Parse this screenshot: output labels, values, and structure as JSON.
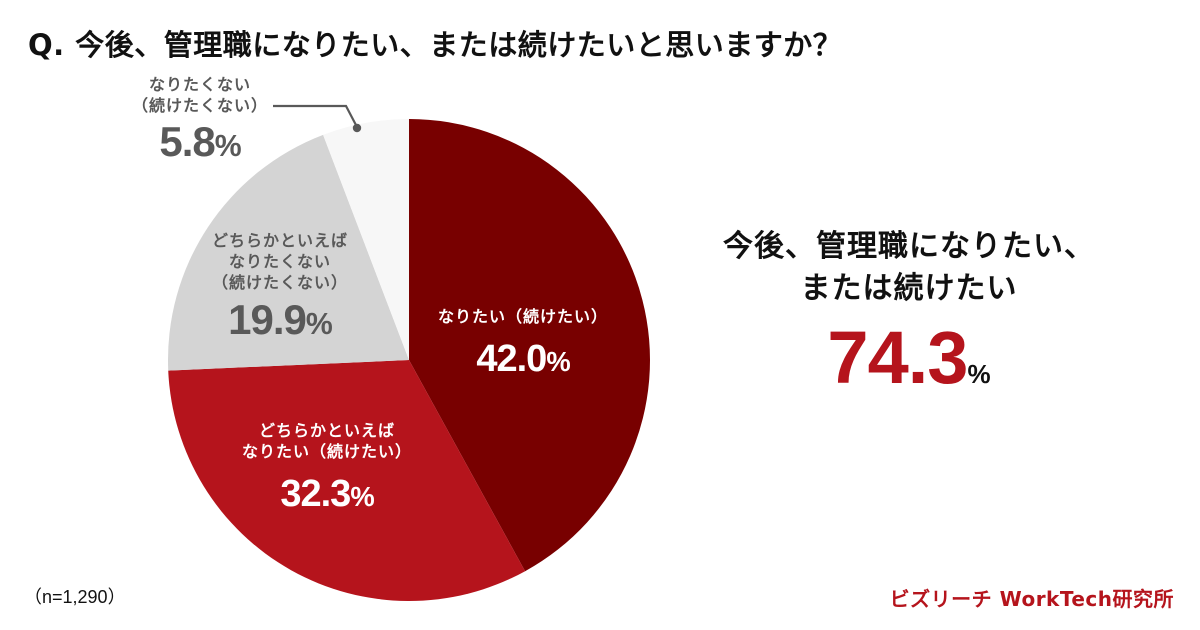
{
  "title": "Q. 今後、管理職になりたい、または続けたいと思いますか？",
  "chart_data": {
    "type": "pie",
    "title": "Q. 今後、管理職になりたい、または続けたいと思いますか？",
    "start_angle": "12 o'clock, clockwise",
    "categories": [
      "なりたい（続けたい）",
      "どちらかといえばなりたい（続けたい）",
      "どちらかといえばなりたくない（続けたくない）",
      "なりたくない（続けたくない）"
    ],
    "values": [
      42.0,
      32.3,
      19.9,
      5.8
    ],
    "colors": [
      "#780000",
      "#b5141c",
      "#d4d4d4",
      "#f7f7f7"
    ],
    "unit": "%",
    "sample_size": "n=1,290",
    "summary": {
      "label": "今後、管理職になりたい、または続けたい",
      "value": 74.3
    }
  },
  "labels": {
    "s1": {
      "lines": [
        "なりたい（続けたい）"
      ],
      "value": "42.0",
      "pct": "%"
    },
    "s2": {
      "lines": [
        "どちらかといえば",
        "なりたい（続けたい）"
      ],
      "value": "32.3",
      "pct": "%"
    },
    "s3": {
      "lines": [
        "どちらかといえば",
        "なりたくない",
        "（続けたくない）"
      ],
      "value": "19.9",
      "pct": "%"
    },
    "s4": {
      "lines": [
        "なりたくない",
        "（続けたくない）"
      ],
      "value": "5.8",
      "pct": "%"
    }
  },
  "summary": {
    "line1": "今後、管理職になりたい、",
    "line2": "または続けたい",
    "value": "74.3",
    "pct": "%"
  },
  "footer": {
    "sample": "（n=1,290）",
    "brand": "ビズリーチ WorkTech研究所"
  }
}
